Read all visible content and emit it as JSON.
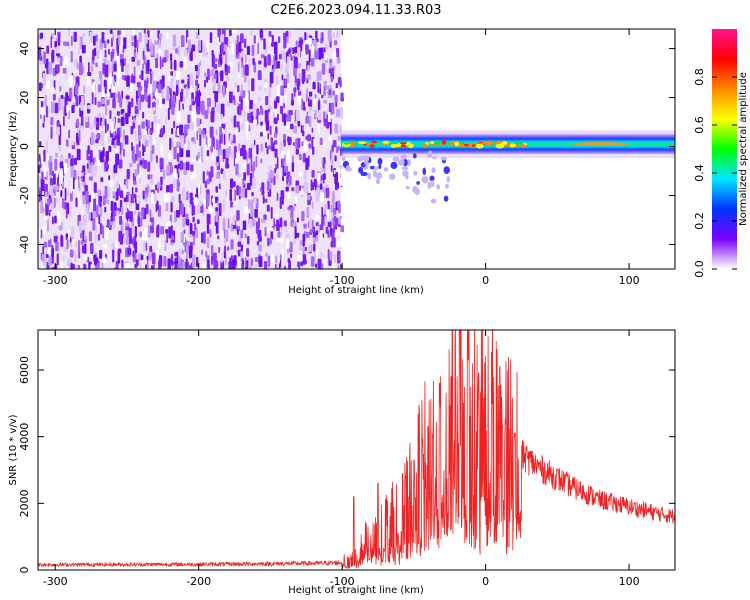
{
  "figure": {
    "title": "C2E6.2023.094.11.33.R03"
  },
  "chart_data": [
    {
      "type": "heatmap",
      "title": "",
      "xlabel": "Height of straight line (km)",
      "ylabel": "Frequency (Hz)",
      "xlim": [
        -312,
        132
      ],
      "ylim": [
        -50,
        48
      ],
      "xticks": [
        -300,
        -200,
        -100,
        0,
        100
      ],
      "yticks": [
        -40,
        -20,
        0,
        20,
        40
      ],
      "colorbar": {
        "label": "Normalized spectral amplitude",
        "range": [
          0.0,
          1.0
        ],
        "ticks": [
          0.0,
          0.2,
          0.4,
          0.6,
          0.8
        ],
        "colors": [
          "#ffffff",
          "#7b00ff",
          "#0033ff",
          "#00e5ff",
          "#00ff00",
          "#ffff00",
          "#ff8800",
          "#ff0000",
          "#ff1493"
        ]
      },
      "regions": [
        {
          "name": "broadband noise",
          "x_range": [
            -312,
            -101
          ],
          "freq_range": [
            -50,
            48
          ],
          "amplitude": 0.05
        },
        {
          "name": "signal band",
          "x_range": [
            -101,
            132
          ],
          "center_freq": 1,
          "half_width": 4,
          "peak_amplitude": 0.8
        }
      ]
    },
    {
      "type": "line",
      "title": "",
      "xlabel": "Height of straight line (km)",
      "ylabel": "SNR (10 * v/v)",
      "xlim": [
        -312,
        132
      ],
      "ylim": [
        0,
        7200
      ],
      "xticks": [
        -300,
        -200,
        -100,
        0,
        100
      ],
      "yticks": [
        0,
        2000,
        4000,
        6000
      ],
      "series": [
        {
          "color": "#ee2222",
          "envelope": [
            [
              -312,
              160
            ],
            [
              -200,
              170
            ],
            [
              -120,
              200
            ],
            [
              -100,
              220
            ],
            [
              -90,
              450
            ],
            [
              -80,
              1000
            ],
            [
              -70,
              1300
            ],
            [
              -60,
              1500
            ],
            [
              -50,
              2300
            ],
            [
              -40,
              3200
            ],
            [
              -30,
              3800
            ],
            [
              -20,
              4600
            ],
            [
              -10,
              4300
            ],
            [
              0,
              4500
            ],
            [
              10,
              4000
            ],
            [
              20,
              3600
            ],
            [
              40,
              3000
            ],
            [
              60,
              2500
            ],
            [
              80,
              2100
            ],
            [
              100,
              1900
            ],
            [
              120,
              1700
            ],
            [
              132,
              1600
            ]
          ],
          "spikes": [
            [
              -92,
              2200
            ],
            [
              -75,
              2600
            ],
            [
              -58,
              2900
            ],
            [
              -50,
              3300
            ],
            [
              -40,
              4300
            ],
            [
              -32,
              5600
            ],
            [
              -24,
              5800
            ],
            [
              -18,
              7200
            ],
            [
              -12,
              6300
            ],
            [
              -5,
              5900
            ],
            [
              10,
              6100
            ],
            [
              20,
              4100
            ]
          ]
        }
      ]
    }
  ]
}
